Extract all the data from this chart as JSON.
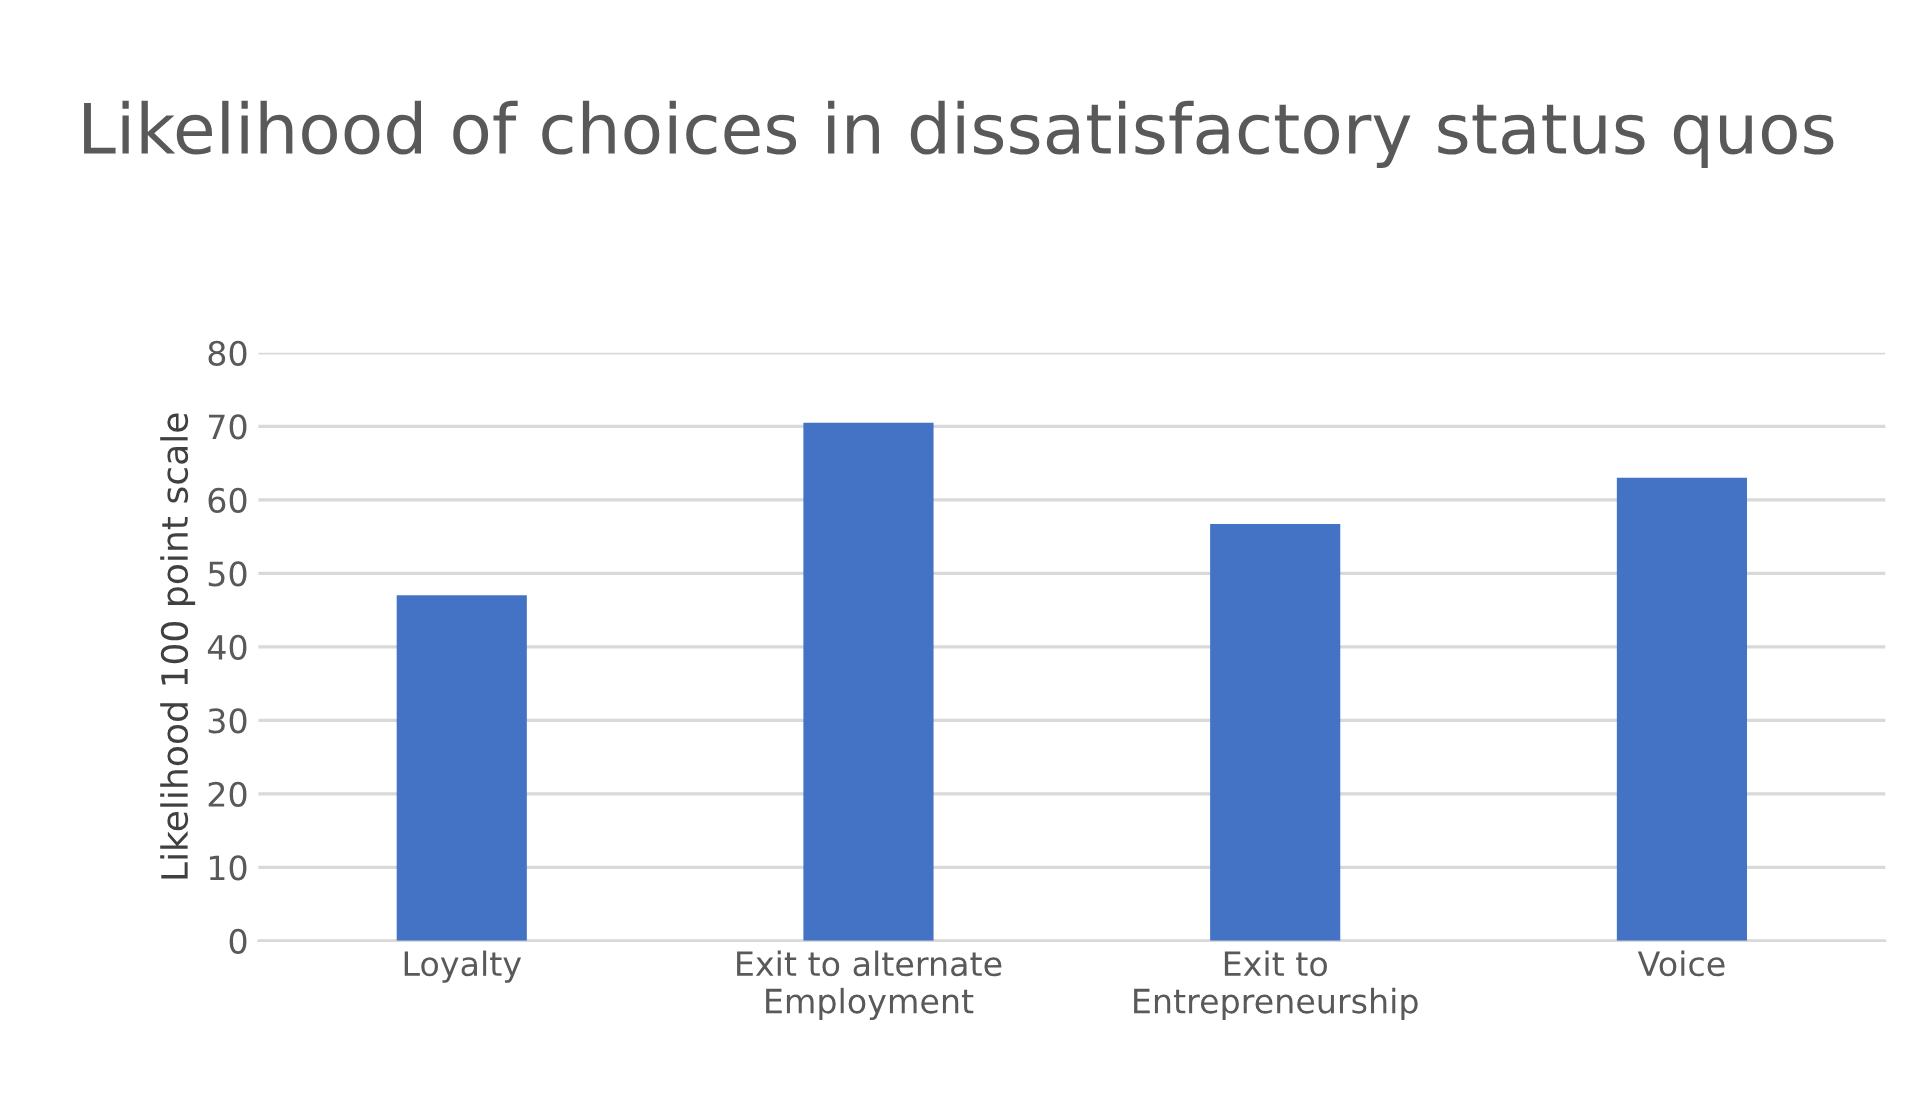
{
  "chart_data": {
    "type": "bar",
    "title": "Likelihood of choices in dissatisfactory status quos",
    "ylabel": "Likelihood 100 point scale",
    "categories": [
      "Loyalty",
      "Exit to alternate\nEmployment",
      "Exit to\nEntrepreneurship",
      "Voice"
    ],
    "values": [
      47,
      70.5,
      56.7,
      63
    ],
    "color": "#4472c4",
    "ylim": [
      0,
      80
    ],
    "yticks": [
      0,
      10,
      20,
      30,
      40,
      50,
      60,
      70,
      80
    ],
    "grid": "y"
  }
}
